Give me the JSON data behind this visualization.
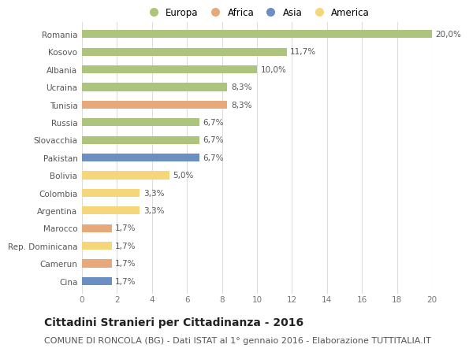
{
  "countries": [
    "Romania",
    "Kosovo",
    "Albania",
    "Ucraina",
    "Tunisia",
    "Russia",
    "Slovacchia",
    "Pakistan",
    "Bolivia",
    "Colombia",
    "Argentina",
    "Marocco",
    "Rep. Dominicana",
    "Camerun",
    "Cina"
  ],
  "values": [
    20.0,
    11.7,
    10.0,
    8.3,
    8.3,
    6.7,
    6.7,
    6.7,
    5.0,
    3.3,
    3.3,
    1.7,
    1.7,
    1.7,
    1.7
  ],
  "labels": [
    "20,0%",
    "11,7%",
    "10,0%",
    "8,3%",
    "8,3%",
    "6,7%",
    "6,7%",
    "6,7%",
    "5,0%",
    "3,3%",
    "3,3%",
    "1,7%",
    "1,7%",
    "1,7%",
    "1,7%"
  ],
  "continents": [
    "Europa",
    "Europa",
    "Europa",
    "Europa",
    "Africa",
    "Europa",
    "Europa",
    "Asia",
    "America",
    "America",
    "America",
    "Africa",
    "America",
    "Africa",
    "Asia"
  ],
  "continent_colors": {
    "Europa": "#adc47d",
    "Africa": "#e8a97a",
    "Asia": "#6b8fc2",
    "America": "#f5d67a"
  },
  "legend_order": [
    "Europa",
    "Africa",
    "Asia",
    "America"
  ],
  "xlim": [
    0,
    20
  ],
  "xticks": [
    0,
    2,
    4,
    6,
    8,
    10,
    12,
    14,
    16,
    18,
    20
  ],
  "title": "Cittadini Stranieri per Cittadinanza - 2016",
  "subtitle": "COMUNE DI RONCOLA (BG) - Dati ISTAT al 1° gennaio 2016 - Elaborazione TUTTITALIA.IT",
  "background_color": "#ffffff",
  "grid_color": "#dddddd",
  "bar_height": 0.45,
  "title_fontsize": 10,
  "subtitle_fontsize": 8,
  "label_fontsize": 7.5,
  "tick_fontsize": 7.5,
  "legend_fontsize": 8.5
}
